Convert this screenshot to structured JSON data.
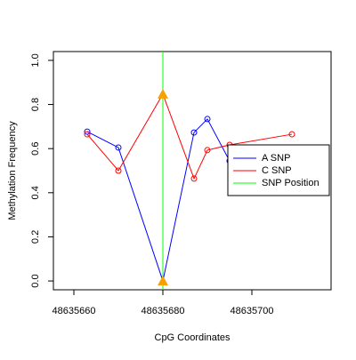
{
  "chart_data": {
    "type": "line",
    "xlabel": "CpG Coordinates",
    "ylabel": "Methylation Frequency",
    "xlim": [
      48635655.4,
      48635717.8
    ],
    "ylim": [
      -0.04,
      1.04
    ],
    "xticks": [
      48635660,
      48635680,
      48635700
    ],
    "yticks": [
      {
        "value": 0,
        "label": "0.0"
      },
      0.2,
      0.4,
      0.6,
      0.8,
      {
        "value": 1,
        "label": "1.0"
      }
    ],
    "series": [
      {
        "name": "A SNP",
        "color": "#0000ff",
        "x": [
          48635663,
          48635670,
          48635680,
          48635687,
          48635690,
          48635695
        ],
        "values": [
          0.677,
          0.605,
          0.0,
          0.673,
          0.734,
          0.544
        ]
      },
      {
        "name": "C SNP",
        "color": "#ff0000",
        "x": [
          48635663,
          48635670,
          48635680,
          48635687,
          48635690,
          48635695,
          48635709
        ],
        "values": [
          0.665,
          0.5,
          0.847,
          0.464,
          0.593,
          0.617,
          0.665
        ]
      }
    ],
    "vline": {
      "name": "SNP Position",
      "color": "#00ff00",
      "x": 48635680
    },
    "snp_marker_color": "#f5a200",
    "legend": "right"
  }
}
